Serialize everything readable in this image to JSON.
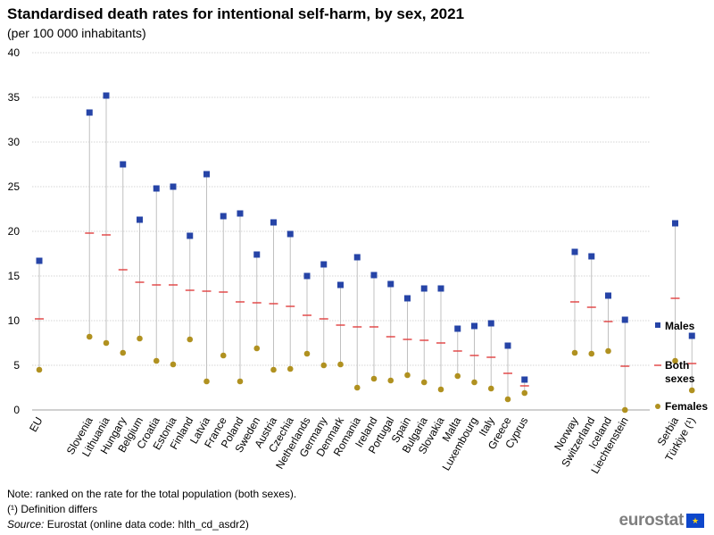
{
  "chart_data": {
    "type": "dot-plot",
    "title": "Standardised death rates for intentional self-harm, by sex, 2021",
    "subtitle": "(per 100 000 inhabitants)",
    "ylim": [
      0,
      40
    ],
    "yticks": [
      "0",
      "5",
      "10",
      "15",
      "20",
      "25",
      "30",
      "35",
      "40"
    ],
    "grid": true,
    "legend_position": "right",
    "categories": [
      "EU",
      "Slovenia",
      "Lithuania",
      "Hungary",
      "Belgium",
      "Croatia",
      "Estonia",
      "Finland",
      "Latvia",
      "France",
      "Poland",
      "Sweden",
      "Austria",
      "Czechia",
      "Netherlands",
      "Germany",
      "Denmark",
      "Romania",
      "Ireland",
      "Portugal",
      "Spain",
      "Bulgaria",
      "Slovakia",
      "Malta",
      "Luxembourg",
      "Italy",
      "Greece",
      "Cyprus",
      "Norway",
      "Switzerland",
      "Iceland",
      "Liechtenstein",
      "Serbia",
      "Türkiye (¹)"
    ],
    "series": [
      {
        "name": "Males",
        "marker": "square",
        "color": "#2644a7",
        "values": [
          16.7,
          33.3,
          35.2,
          27.5,
          21.3,
          24.8,
          25.0,
          19.5,
          26.4,
          21.7,
          22.0,
          17.4,
          21.0,
          19.7,
          15.0,
          16.3,
          14.0,
          17.1,
          15.1,
          14.1,
          12.5,
          13.6,
          13.6,
          9.1,
          9.4,
          9.7,
          7.2,
          3.4,
          17.7,
          17.2,
          12.8,
          10.1,
          20.9,
          8.3
        ]
      },
      {
        "name": "Both sexes",
        "marker": "dash",
        "color": "#e04040",
        "values": [
          10.2,
          19.8,
          19.6,
          15.7,
          14.3,
          14.0,
          14.0,
          13.4,
          13.3,
          13.2,
          12.1,
          12.0,
          11.9,
          11.6,
          10.6,
          10.2,
          9.5,
          9.3,
          9.3,
          8.2,
          7.9,
          7.8,
          7.5,
          6.6,
          6.1,
          5.9,
          4.1,
          2.7,
          12.1,
          11.5,
          9.9,
          4.9,
          12.5,
          5.2
        ]
      },
      {
        "name": "Females",
        "marker": "circle",
        "color": "#b09120",
        "values": [
          4.5,
          8.2,
          7.5,
          6.4,
          8.0,
          5.5,
          5.1,
          7.9,
          3.2,
          6.1,
          3.2,
          6.9,
          4.5,
          4.6,
          6.3,
          5.0,
          5.1,
          2.5,
          3.5,
          3.3,
          3.9,
          3.1,
          2.3,
          3.8,
          3.1,
          2.4,
          1.2,
          1.9,
          6.4,
          6.3,
          6.6,
          0.0,
          5.5,
          2.2
        ]
      }
    ],
    "legend": {
      "males": "Males",
      "both_line1": "Both",
      "both_line2": "sexes",
      "females": "Females"
    }
  },
  "footer": {
    "note": "Note: ranked on the rate for the total population (both sexes).",
    "definition": "(¹) Definition differs",
    "source_label": "Source:",
    "source_text": " Eurostat (online data code: hlth_cd_asdr2)"
  },
  "logo": {
    "text": "eurostat",
    "icon": "eu-flag-icon"
  }
}
